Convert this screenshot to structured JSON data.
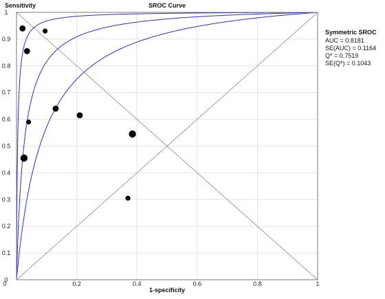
{
  "chart_data": {
    "type": "scatter",
    "title": "SROC Curve",
    "xlabel": "1-specificity",
    "ylabel": "Sensitivity",
    "xlim": [
      0,
      1
    ],
    "ylim": [
      0,
      1
    ],
    "x_ticks": [
      "0",
      "0.2",
      "0.4",
      "0.6",
      "0.8",
      "1"
    ],
    "y_ticks": [
      "0",
      "0.1",
      "0.2",
      "0.3",
      "0.4",
      "0.5",
      "0.6",
      "0.7",
      "0.8",
      "0.9",
      "1"
    ],
    "points": [
      {
        "x": 0.02,
        "y": 0.94,
        "size": "medium"
      },
      {
        "x": 0.035,
        "y": 0.855,
        "size": "medium"
      },
      {
        "x": 0.095,
        "y": 0.93,
        "size": "small"
      },
      {
        "x": 0.04,
        "y": 0.59,
        "size": "small"
      },
      {
        "x": 0.025,
        "y": 0.455,
        "size": "large"
      },
      {
        "x": 0.13,
        "y": 0.64,
        "size": "medium"
      },
      {
        "x": 0.21,
        "y": 0.615,
        "size": "medium"
      },
      {
        "x": 0.385,
        "y": 0.545,
        "size": "large"
      },
      {
        "x": 0.37,
        "y": 0.305,
        "size": "small"
      }
    ],
    "curves": {
      "sroc_odds_ratio": 39.85,
      "lower_odds_ratio": 12.0,
      "upper_odds_ratio": 270.0,
      "color": "#2b2bd6"
    },
    "reference_lines": {
      "diagonal": true,
      "anti_diagonal": true,
      "color": "#a0a0a0"
    },
    "stats": {
      "title": "Symmetric SROC",
      "lines": [
        "AUC = 0.8181",
        "SE(AUC) = 0.1164",
        "Q* = 0.7519",
        "SE(Q*) = 0.1043"
      ]
    },
    "grid": true,
    "grid_color": "#e4e4e4",
    "legend_position": "right"
  }
}
